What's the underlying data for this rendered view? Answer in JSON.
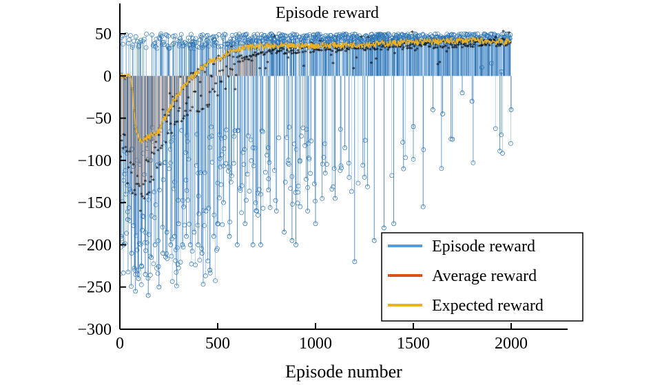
{
  "chart_data": {
    "type": "scatter",
    "title": "Episode reward",
    "xlabel": "Episode number",
    "ylabel": "",
    "xlim": [
      0,
      2300
    ],
    "ylim": [
      -300,
      80
    ],
    "xticks": [
      0,
      500,
      1000,
      1500,
      2000
    ],
    "xtick_labels": [
      "0",
      "500",
      "1000",
      "1500",
      "2000"
    ],
    "yticks": [
      50,
      0,
      -50,
      -100,
      -150,
      -200,
      -250,
      -300
    ],
    "ytick_labels": [
      "50",
      "0",
      "−50",
      "−100",
      "−150",
      "−200",
      "−250",
      "−300"
    ],
    "grid": false,
    "legend_position": "bottom-right",
    "n_episodes": 2000,
    "series": [
      {
        "name": "Episode reward",
        "color": "#5b9bd5",
        "stem_color": "#2e75b6",
        "marker": "circle",
        "style": "stem",
        "ceiling": 50,
        "sample_dips": [
          [
            20,
            -200
          ],
          [
            40,
            -170
          ],
          [
            60,
            -210
          ],
          [
            80,
            -255
          ],
          [
            95,
            -240
          ],
          [
            110,
            -225
          ],
          [
            130,
            -235
          ],
          [
            145,
            -260
          ],
          [
            160,
            -215
          ],
          [
            180,
            -200
          ],
          [
            200,
            -250
          ],
          [
            220,
            -210
          ],
          [
            240,
            -185
          ],
          [
            260,
            -200
          ],
          [
            280,
            -190
          ],
          [
            300,
            -175
          ],
          [
            320,
            -200
          ],
          [
            340,
            -190
          ],
          [
            360,
            -200
          ],
          [
            380,
            -185
          ],
          [
            400,
            -200
          ],
          [
            420,
            -210
          ],
          [
            440,
            -160
          ],
          [
            460,
            -230
          ],
          [
            480,
            -190
          ],
          [
            500,
            -175
          ],
          [
            530,
            -150
          ],
          [
            560,
            -190
          ],
          [
            600,
            -200
          ],
          [
            640,
            -175
          ],
          [
            680,
            -200
          ],
          [
            700,
            -160
          ],
          [
            720,
            -200
          ],
          [
            760,
            -135
          ],
          [
            800,
            -160
          ],
          [
            840,
            -185
          ],
          [
            880,
            -195
          ],
          [
            900,
            -200
          ],
          [
            920,
            -100
          ],
          [
            960,
            -160
          ],
          [
            1000,
            -175
          ],
          [
            1050,
            -115
          ],
          [
            1100,
            -145
          ],
          [
            1150,
            -85
          ],
          [
            1200,
            -220
          ],
          [
            1250,
            -120
          ],
          [
            1300,
            -195
          ],
          [
            1350,
            -180
          ],
          [
            1400,
            -175
          ],
          [
            1450,
            -110
          ],
          [
            1500,
            -60
          ],
          [
            1550,
            -155
          ],
          [
            1600,
            -40
          ],
          [
            1650,
            -45
          ],
          [
            1700,
            -75
          ],
          [
            1750,
            -20
          ],
          [
            1800,
            -30
          ],
          [
            1850,
            10
          ],
          [
            1900,
            15
          ],
          [
            1950,
            5
          ],
          [
            2000,
            -40
          ]
        ],
        "mean_trend": [
          [
            0,
            -60
          ],
          [
            100,
            -120
          ],
          [
            200,
            -90
          ],
          [
            300,
            -40
          ],
          [
            400,
            -10
          ],
          [
            500,
            10
          ],
          [
            600,
            25
          ],
          [
            800,
            30
          ],
          [
            1000,
            35
          ],
          [
            1500,
            40
          ],
          [
            2000,
            42
          ]
        ]
      },
      {
        "name": "Average reward",
        "color": "#d95319",
        "marker": "asterisk",
        "style": "stem",
        "trend": [
          [
            0,
            -60
          ],
          [
            50,
            -110
          ],
          [
            100,
            -130
          ],
          [
            150,
            -120
          ],
          [
            200,
            -80
          ],
          [
            250,
            -40
          ],
          [
            300,
            -20
          ],
          [
            400,
            -10
          ],
          [
            500,
            0
          ],
          [
            600,
            20
          ],
          [
            700,
            25
          ],
          [
            800,
            30
          ],
          [
            1000,
            32
          ],
          [
            1200,
            33
          ],
          [
            1500,
            36
          ],
          [
            1800,
            38
          ],
          [
            2000,
            40
          ]
        ]
      },
      {
        "name": "Expected reward",
        "color": "#edb120",
        "marker": "x",
        "style": "line",
        "trend": [
          [
            0,
            0
          ],
          [
            50,
            0
          ],
          [
            60,
            -5
          ],
          [
            80,
            -60
          ],
          [
            100,
            -78
          ],
          [
            150,
            -72
          ],
          [
            200,
            -65
          ],
          [
            250,
            -40
          ],
          [
            300,
            -20
          ],
          [
            350,
            -5
          ],
          [
            400,
            5
          ],
          [
            450,
            15
          ],
          [
            500,
            20
          ],
          [
            550,
            28
          ],
          [
            600,
            32
          ],
          [
            700,
            35
          ],
          [
            800,
            35
          ],
          [
            1000,
            36
          ],
          [
            1200,
            37
          ],
          [
            1500,
            40
          ],
          [
            1800,
            42
          ],
          [
            2000,
            40
          ]
        ]
      }
    ]
  }
}
